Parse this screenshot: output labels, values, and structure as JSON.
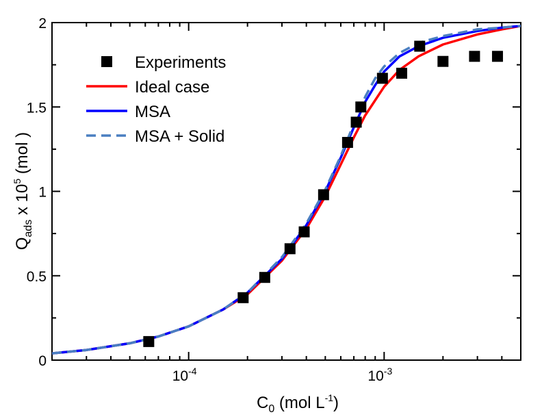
{
  "chart_data": {
    "type": "line",
    "xscale": "log",
    "xlim": [
      2e-05,
      0.005
    ],
    "ylim": [
      0,
      2
    ],
    "xlabel": {
      "base": "C",
      "sub": "0",
      "main": " (mol L",
      "sup": "-1",
      "tail": ")"
    },
    "ylabel": {
      "base": "Q",
      "sub": "ads",
      "mid": " x 10",
      "sup": "5",
      "tail": " (mol )"
    },
    "x_ticks": [
      {
        "value": 0.0001,
        "base": "10",
        "exp": "-4"
      },
      {
        "value": 0.001,
        "base": "10",
        "exp": "-3"
      }
    ],
    "y_ticks": [
      {
        "value": 0,
        "label": "0"
      },
      {
        "value": 0.5,
        "label": "0.5"
      },
      {
        "value": 1,
        "label": "1"
      },
      {
        "value": 1.5,
        "label": "1.5"
      },
      {
        "value": 2,
        "label": "2"
      }
    ],
    "legend_position": "top-left",
    "series": [
      {
        "name": "Experiments",
        "kind": "markers",
        "color": "#000000",
        "x": [
          6.25e-05,
          0.00019,
          0.000245,
          0.00033,
          0.00039,
          0.00049,
          0.00065,
          0.00072,
          0.00076,
          0.00098,
          0.00123,
          0.00152,
          0.002,
          0.0029,
          0.0038
        ],
        "y": [
          0.11,
          0.37,
          0.49,
          0.66,
          0.76,
          0.98,
          1.29,
          1.41,
          1.5,
          1.67,
          1.7,
          1.86,
          1.77,
          1.8,
          1.8
        ]
      },
      {
        "name": "Ideal case",
        "kind": "line",
        "color": "#ff0000",
        "dash": "",
        "x": [
          2e-05,
          3e-05,
          5e-05,
          7e-05,
          0.0001,
          0.00015,
          0.0002,
          0.0003,
          0.0004,
          0.0005,
          0.0006,
          0.0007,
          0.0008,
          0.001,
          0.0012,
          0.0015,
          0.002,
          0.003,
          0.004,
          0.005
        ],
        "y": [
          0.04,
          0.06,
          0.1,
          0.14,
          0.2,
          0.3,
          0.39,
          0.59,
          0.78,
          0.97,
          1.16,
          1.32,
          1.45,
          1.62,
          1.72,
          1.8,
          1.87,
          1.93,
          1.96,
          1.98
        ]
      },
      {
        "name": "MSA",
        "kind": "line",
        "color": "#0000ff",
        "dash": "",
        "x": [
          2e-05,
          3e-05,
          5e-05,
          7e-05,
          0.0001,
          0.00015,
          0.0002,
          0.0003,
          0.0004,
          0.0005,
          0.0006,
          0.0007,
          0.0008,
          0.0009,
          0.001,
          0.0012,
          0.0015,
          0.002,
          0.003,
          0.004,
          0.005
        ],
        "y": [
          0.04,
          0.06,
          0.1,
          0.14,
          0.2,
          0.3,
          0.4,
          0.6,
          0.8,
          1.0,
          1.2,
          1.38,
          1.53,
          1.63,
          1.71,
          1.8,
          1.86,
          1.91,
          1.95,
          1.97,
          1.98
        ]
      },
      {
        "name": "MSA + Solid",
        "kind": "line",
        "color": "#4a7fc1",
        "dash": "14,8",
        "x": [
          2e-05,
          3e-05,
          5e-05,
          7e-05,
          0.0001,
          0.00015,
          0.0002,
          0.0003,
          0.0004,
          0.0005,
          0.0006,
          0.0007,
          0.0008,
          0.0009,
          0.001,
          0.0012,
          0.0015,
          0.002,
          0.003,
          0.004,
          0.005
        ],
        "y": [
          0.04,
          0.06,
          0.1,
          0.14,
          0.2,
          0.3,
          0.4,
          0.61,
          0.81,
          1.01,
          1.21,
          1.4,
          1.56,
          1.67,
          1.74,
          1.82,
          1.88,
          1.92,
          1.96,
          1.97,
          1.98
        ]
      }
    ]
  }
}
